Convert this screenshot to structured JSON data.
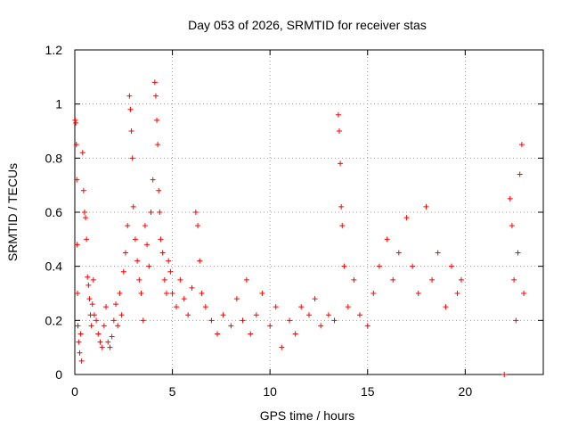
{
  "chart_data": {
    "type": "scatter",
    "title": "Day 053 of 2026, SRMTID for receiver stas",
    "xlabel": "GPS time / hours",
    "ylabel": "SRMTID / TECUs",
    "xlim": [
      0,
      24
    ],
    "ylim": [
      0,
      1.2
    ],
    "xticks": [
      0,
      5,
      10,
      15,
      20
    ],
    "xtick_labels": [
      "0",
      "5",
      "10",
      "15",
      "20"
    ],
    "yticks": [
      0,
      0.2,
      0.4,
      0.6,
      0.8,
      1.0,
      1.2
    ],
    "ytick_labels": [
      "0",
      "0.2",
      "0.4",
      "0.6",
      "0.8",
      "1",
      "1.2"
    ],
    "grid": true,
    "marker": "plus",
    "color": "#ff0000",
    "series": [
      {
        "name": "SRMTID",
        "points": [
          [
            0.02,
            0.94
          ],
          [
            0.05,
            0.93
          ],
          [
            0.08,
            0.85
          ],
          [
            0.1,
            0.72
          ],
          [
            0.12,
            0.48
          ],
          [
            0.14,
            0.3
          ],
          [
            0.16,
            0.18
          ],
          [
            0.2,
            0.12
          ],
          [
            0.25,
            0.08
          ],
          [
            0.3,
            0.15
          ],
          [
            0.35,
            0.05
          ],
          [
            0.4,
            0.82
          ],
          [
            0.45,
            0.68
          ],
          [
            0.5,
            0.6
          ],
          [
            0.55,
            0.58
          ],
          [
            0.6,
            0.5
          ],
          [
            0.65,
            0.36
          ],
          [
            0.7,
            0.33
          ],
          [
            0.75,
            0.28
          ],
          [
            0.8,
            0.22
          ],
          [
            0.85,
            0.18
          ],
          [
            0.9,
            0.26
          ],
          [
            0.95,
            0.35
          ],
          [
            1.0,
            0.22
          ],
          [
            1.1,
            0.2
          ],
          [
            1.2,
            0.15
          ],
          [
            1.3,
            0.12
          ],
          [
            1.4,
            0.1
          ],
          [
            1.5,
            0.18
          ],
          [
            1.6,
            0.25
          ],
          [
            1.7,
            0.12
          ],
          [
            1.8,
            0.1
          ],
          [
            1.9,
            0.14
          ],
          [
            2.0,
            0.2
          ],
          [
            2.1,
            0.26
          ],
          [
            2.2,
            0.18
          ],
          [
            2.3,
            0.3
          ],
          [
            2.4,
            0.22
          ],
          [
            2.5,
            0.38
          ],
          [
            2.6,
            0.45
          ],
          [
            2.7,
            0.55
          ],
          [
            2.8,
            1.03
          ],
          [
            2.85,
            0.98
          ],
          [
            2.9,
            0.9
          ],
          [
            2.95,
            0.8
          ],
          [
            3.0,
            0.62
          ],
          [
            3.1,
            0.5
          ],
          [
            3.2,
            0.42
          ],
          [
            3.3,
            0.35
          ],
          [
            3.4,
            0.3
          ],
          [
            3.5,
            0.2
          ],
          [
            3.6,
            0.55
          ],
          [
            3.7,
            0.48
          ],
          [
            3.8,
            0.4
          ],
          [
            3.9,
            0.6
          ],
          [
            4.0,
            0.72
          ],
          [
            4.1,
            1.08
          ],
          [
            4.15,
            1.03
          ],
          [
            4.2,
            0.94
          ],
          [
            4.25,
            0.85
          ],
          [
            4.3,
            0.68
          ],
          [
            4.35,
            0.6
          ],
          [
            4.4,
            0.5
          ],
          [
            4.5,
            0.45
          ],
          [
            4.6,
            0.35
          ],
          [
            4.7,
            0.3
          ],
          [
            4.8,
            0.42
          ],
          [
            4.9,
            0.38
          ],
          [
            5.0,
            0.3
          ],
          [
            5.2,
            0.25
          ],
          [
            5.4,
            0.35
          ],
          [
            5.6,
            0.28
          ],
          [
            5.8,
            0.22
          ],
          [
            6.0,
            0.32
          ],
          [
            6.2,
            0.6
          ],
          [
            6.3,
            0.55
          ],
          [
            6.4,
            0.42
          ],
          [
            6.5,
            0.3
          ],
          [
            6.7,
            0.25
          ],
          [
            7.0,
            0.2
          ],
          [
            7.3,
            0.15
          ],
          [
            7.6,
            0.22
          ],
          [
            8.0,
            0.18
          ],
          [
            8.3,
            0.28
          ],
          [
            8.6,
            0.2
          ],
          [
            8.8,
            0.35
          ],
          [
            9.0,
            0.15
          ],
          [
            9.3,
            0.22
          ],
          [
            9.6,
            0.3
          ],
          [
            10.0,
            0.18
          ],
          [
            10.3,
            0.25
          ],
          [
            10.6,
            0.1
          ],
          [
            11.0,
            0.2
          ],
          [
            11.3,
            0.15
          ],
          [
            11.6,
            0.25
          ],
          [
            12.0,
            0.22
          ],
          [
            12.3,
            0.28
          ],
          [
            12.6,
            0.18
          ],
          [
            13.0,
            0.22
          ],
          [
            13.3,
            0.2
          ],
          [
            13.5,
            0.96
          ],
          [
            13.55,
            0.9
          ],
          [
            13.6,
            0.78
          ],
          [
            13.65,
            0.62
          ],
          [
            13.7,
            0.55
          ],
          [
            13.8,
            0.4
          ],
          [
            14.0,
            0.25
          ],
          [
            14.3,
            0.35
          ],
          [
            14.6,
            0.22
          ],
          [
            15.0,
            0.18
          ],
          [
            15.3,
            0.3
          ],
          [
            15.6,
            0.4
          ],
          [
            16.0,
            0.5
          ],
          [
            16.3,
            0.35
          ],
          [
            16.6,
            0.45
          ],
          [
            17.0,
            0.58
          ],
          [
            17.3,
            0.4
          ],
          [
            17.6,
            0.3
          ],
          [
            18.0,
            0.62
          ],
          [
            18.3,
            0.35
          ],
          [
            18.6,
            0.45
          ],
          [
            19.0,
            0.25
          ],
          [
            19.3,
            0.4
          ],
          [
            19.6,
            0.3
          ],
          [
            19.8,
            0.35
          ],
          [
            22.0,
            0.0
          ],
          [
            22.3,
            0.65
          ],
          [
            22.4,
            0.55
          ],
          [
            22.5,
            0.35
          ],
          [
            22.6,
            0.2
          ],
          [
            22.7,
            0.45
          ],
          [
            22.8,
            0.74
          ],
          [
            22.9,
            0.85
          ],
          [
            23.0,
            0.3
          ]
        ]
      }
    ]
  }
}
